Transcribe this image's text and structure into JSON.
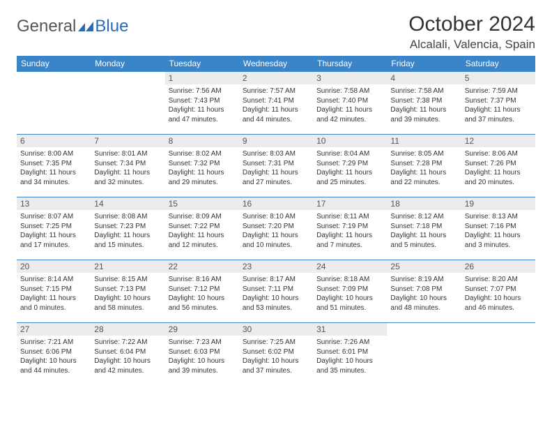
{
  "logo": {
    "part1": "General",
    "part2": "Blue"
  },
  "title": "October 2024",
  "location": "Alcalali, Valencia, Spain",
  "colors": {
    "accent": "#3a85c9",
    "daynum_bg": "#ececec",
    "text": "#333333"
  },
  "days": [
    "Sunday",
    "Monday",
    "Tuesday",
    "Wednesday",
    "Thursday",
    "Friday",
    "Saturday"
  ],
  "weeks": [
    [
      null,
      null,
      {
        "n": "1",
        "sr": "Sunrise: 7:56 AM",
        "ss": "Sunset: 7:43 PM",
        "dl1": "Daylight: 11 hours",
        "dl2": "and 47 minutes."
      },
      {
        "n": "2",
        "sr": "Sunrise: 7:57 AM",
        "ss": "Sunset: 7:41 PM",
        "dl1": "Daylight: 11 hours",
        "dl2": "and 44 minutes."
      },
      {
        "n": "3",
        "sr": "Sunrise: 7:58 AM",
        "ss": "Sunset: 7:40 PM",
        "dl1": "Daylight: 11 hours",
        "dl2": "and 42 minutes."
      },
      {
        "n": "4",
        "sr": "Sunrise: 7:58 AM",
        "ss": "Sunset: 7:38 PM",
        "dl1": "Daylight: 11 hours",
        "dl2": "and 39 minutes."
      },
      {
        "n": "5",
        "sr": "Sunrise: 7:59 AM",
        "ss": "Sunset: 7:37 PM",
        "dl1": "Daylight: 11 hours",
        "dl2": "and 37 minutes."
      }
    ],
    [
      {
        "n": "6",
        "sr": "Sunrise: 8:00 AM",
        "ss": "Sunset: 7:35 PM",
        "dl1": "Daylight: 11 hours",
        "dl2": "and 34 minutes."
      },
      {
        "n": "7",
        "sr": "Sunrise: 8:01 AM",
        "ss": "Sunset: 7:34 PM",
        "dl1": "Daylight: 11 hours",
        "dl2": "and 32 minutes."
      },
      {
        "n": "8",
        "sr": "Sunrise: 8:02 AM",
        "ss": "Sunset: 7:32 PM",
        "dl1": "Daylight: 11 hours",
        "dl2": "and 29 minutes."
      },
      {
        "n": "9",
        "sr": "Sunrise: 8:03 AM",
        "ss": "Sunset: 7:31 PM",
        "dl1": "Daylight: 11 hours",
        "dl2": "and 27 minutes."
      },
      {
        "n": "10",
        "sr": "Sunrise: 8:04 AM",
        "ss": "Sunset: 7:29 PM",
        "dl1": "Daylight: 11 hours",
        "dl2": "and 25 minutes."
      },
      {
        "n": "11",
        "sr": "Sunrise: 8:05 AM",
        "ss": "Sunset: 7:28 PM",
        "dl1": "Daylight: 11 hours",
        "dl2": "and 22 minutes."
      },
      {
        "n": "12",
        "sr": "Sunrise: 8:06 AM",
        "ss": "Sunset: 7:26 PM",
        "dl1": "Daylight: 11 hours",
        "dl2": "and 20 minutes."
      }
    ],
    [
      {
        "n": "13",
        "sr": "Sunrise: 8:07 AM",
        "ss": "Sunset: 7:25 PM",
        "dl1": "Daylight: 11 hours",
        "dl2": "and 17 minutes."
      },
      {
        "n": "14",
        "sr": "Sunrise: 8:08 AM",
        "ss": "Sunset: 7:23 PM",
        "dl1": "Daylight: 11 hours",
        "dl2": "and 15 minutes."
      },
      {
        "n": "15",
        "sr": "Sunrise: 8:09 AM",
        "ss": "Sunset: 7:22 PM",
        "dl1": "Daylight: 11 hours",
        "dl2": "and 12 minutes."
      },
      {
        "n": "16",
        "sr": "Sunrise: 8:10 AM",
        "ss": "Sunset: 7:20 PM",
        "dl1": "Daylight: 11 hours",
        "dl2": "and 10 minutes."
      },
      {
        "n": "17",
        "sr": "Sunrise: 8:11 AM",
        "ss": "Sunset: 7:19 PM",
        "dl1": "Daylight: 11 hours",
        "dl2": "and 7 minutes."
      },
      {
        "n": "18",
        "sr": "Sunrise: 8:12 AM",
        "ss": "Sunset: 7:18 PM",
        "dl1": "Daylight: 11 hours",
        "dl2": "and 5 minutes."
      },
      {
        "n": "19",
        "sr": "Sunrise: 8:13 AM",
        "ss": "Sunset: 7:16 PM",
        "dl1": "Daylight: 11 hours",
        "dl2": "and 3 minutes."
      }
    ],
    [
      {
        "n": "20",
        "sr": "Sunrise: 8:14 AM",
        "ss": "Sunset: 7:15 PM",
        "dl1": "Daylight: 11 hours",
        "dl2": "and 0 minutes."
      },
      {
        "n": "21",
        "sr": "Sunrise: 8:15 AM",
        "ss": "Sunset: 7:13 PM",
        "dl1": "Daylight: 10 hours",
        "dl2": "and 58 minutes."
      },
      {
        "n": "22",
        "sr": "Sunrise: 8:16 AM",
        "ss": "Sunset: 7:12 PM",
        "dl1": "Daylight: 10 hours",
        "dl2": "and 56 minutes."
      },
      {
        "n": "23",
        "sr": "Sunrise: 8:17 AM",
        "ss": "Sunset: 7:11 PM",
        "dl1": "Daylight: 10 hours",
        "dl2": "and 53 minutes."
      },
      {
        "n": "24",
        "sr": "Sunrise: 8:18 AM",
        "ss": "Sunset: 7:09 PM",
        "dl1": "Daylight: 10 hours",
        "dl2": "and 51 minutes."
      },
      {
        "n": "25",
        "sr": "Sunrise: 8:19 AM",
        "ss": "Sunset: 7:08 PM",
        "dl1": "Daylight: 10 hours",
        "dl2": "and 48 minutes."
      },
      {
        "n": "26",
        "sr": "Sunrise: 8:20 AM",
        "ss": "Sunset: 7:07 PM",
        "dl1": "Daylight: 10 hours",
        "dl2": "and 46 minutes."
      }
    ],
    [
      {
        "n": "27",
        "sr": "Sunrise: 7:21 AM",
        "ss": "Sunset: 6:06 PM",
        "dl1": "Daylight: 10 hours",
        "dl2": "and 44 minutes."
      },
      {
        "n": "28",
        "sr": "Sunrise: 7:22 AM",
        "ss": "Sunset: 6:04 PM",
        "dl1": "Daylight: 10 hours",
        "dl2": "and 42 minutes."
      },
      {
        "n": "29",
        "sr": "Sunrise: 7:23 AM",
        "ss": "Sunset: 6:03 PM",
        "dl1": "Daylight: 10 hours",
        "dl2": "and 39 minutes."
      },
      {
        "n": "30",
        "sr": "Sunrise: 7:25 AM",
        "ss": "Sunset: 6:02 PM",
        "dl1": "Daylight: 10 hours",
        "dl2": "and 37 minutes."
      },
      {
        "n": "31",
        "sr": "Sunrise: 7:26 AM",
        "ss": "Sunset: 6:01 PM",
        "dl1": "Daylight: 10 hours",
        "dl2": "and 35 minutes."
      },
      null,
      null
    ]
  ]
}
